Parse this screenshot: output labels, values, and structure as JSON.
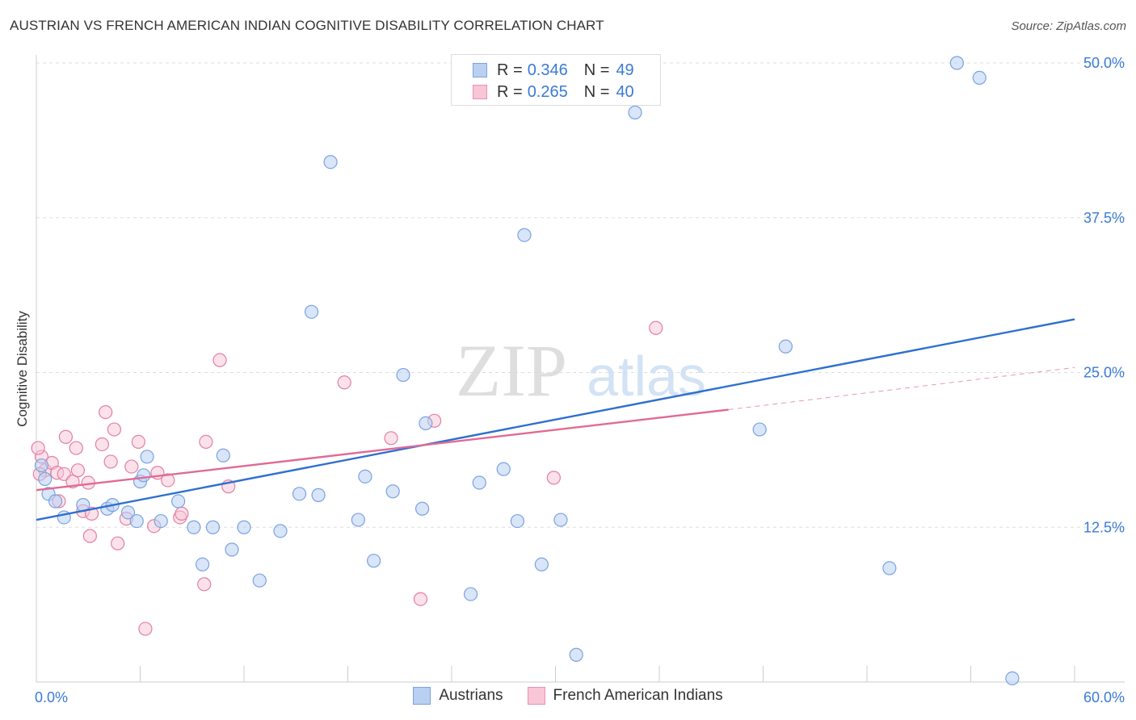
{
  "title": "AUSTRIAN VS FRENCH AMERICAN INDIAN COGNITIVE DISABILITY CORRELATION CHART",
  "source": "Source: ZipAtlas.com",
  "watermark": {
    "zip": "ZIP",
    "atlas": "atlas"
  },
  "legend": {
    "rows": [
      {
        "r_label": "R = ",
        "r_value": "0.346",
        "n_label": "N = ",
        "n_value": "49",
        "fill": "#b9d0f2",
        "stroke": "#7aa3e0"
      },
      {
        "r_label": "R = ",
        "r_value": "0.265",
        "n_label": "N = ",
        "n_value": "40",
        "fill": "#f8c6d6",
        "stroke": "#e892b0"
      }
    ]
  },
  "bottom_legend": [
    {
      "label": "Austrians",
      "fill": "#b9d0f2",
      "stroke": "#7aa3e0"
    },
    {
      "label": "French American Indians",
      "fill": "#f8c6d6",
      "stroke": "#e892b0"
    }
  ],
  "colors": {
    "austrians_fill": "rgba(185,208,242,0.55)",
    "austrians_stroke": "#7aa3e0",
    "austrians_line": "#2e6fd0",
    "french_fill": "rgba(248,198,214,0.5)",
    "french_stroke": "#e37fa2",
    "french_line": "#e06a96",
    "tick_label": "#3a7bd5",
    "grid": "#dddddd"
  },
  "chart_data": {
    "type": "scatter",
    "title": "AUSTRIAN VS FRENCH AMERICAN INDIAN COGNITIVE DISABILITY CORRELATION CHART",
    "xlabel": "",
    "ylabel": "Cognitive Disability",
    "xlim": [
      0,
      60
    ],
    "ylim": [
      0,
      50
    ],
    "x_tick_labels": [
      "0.0%",
      "60.0%"
    ],
    "y_ticks": [
      12.5,
      25.0,
      37.5,
      50.0
    ],
    "y_tick_labels": [
      "12.5%",
      "25.0%",
      "37.5%",
      "50.0%"
    ],
    "grid": "horizontal dashed",
    "legend_position": "top-center",
    "series": [
      {
        "name": "Austrians",
        "points": [
          [
            0.3,
            17.5
          ],
          [
            0.7,
            15.2
          ],
          [
            1.1,
            14.6
          ],
          [
            1.6,
            13.3
          ],
          [
            2.7,
            14.3
          ],
          [
            4.1,
            14.0
          ],
          [
            4.4,
            14.3
          ],
          [
            5.3,
            13.7
          ],
          [
            6.0,
            16.2
          ],
          [
            5.8,
            13.0
          ],
          [
            6.2,
            16.7
          ],
          [
            6.4,
            18.2
          ],
          [
            7.2,
            13.0
          ],
          [
            8.2,
            14.6
          ],
          [
            9.1,
            12.5
          ],
          [
            9.6,
            9.5
          ],
          [
            10.2,
            12.5
          ],
          [
            10.8,
            18.3
          ],
          [
            11.3,
            10.7
          ],
          [
            12.9,
            8.2
          ],
          [
            12.0,
            12.5
          ],
          [
            14.1,
            12.2
          ],
          [
            15.2,
            15.2
          ],
          [
            16.3,
            15.1
          ],
          [
            15.9,
            29.9
          ],
          [
            17.0,
            42.0
          ],
          [
            19.5,
            9.8
          ],
          [
            18.6,
            13.1
          ],
          [
            19.0,
            16.6
          ],
          [
            20.6,
            15.4
          ],
          [
            21.2,
            24.8
          ],
          [
            22.3,
            14.0
          ],
          [
            22.5,
            20.9
          ],
          [
            25.1,
            7.1
          ],
          [
            25.6,
            16.1
          ],
          [
            27.0,
            17.2
          ],
          [
            27.8,
            13.0
          ],
          [
            28.2,
            36.1
          ],
          [
            29.2,
            9.5
          ],
          [
            30.3,
            13.1
          ],
          [
            31.2,
            2.2
          ],
          [
            34.6,
            46.0
          ],
          [
            41.8,
            20.4
          ],
          [
            43.3,
            27.1
          ],
          [
            49.3,
            9.2
          ],
          [
            53.2,
            50.0
          ],
          [
            54.5,
            48.8
          ],
          [
            56.4,
            0.3
          ],
          [
            0.5,
            16.4
          ]
        ]
      },
      {
        "name": "French American Indians",
        "points": [
          [
            0.3,
            18.2
          ],
          [
            0.5,
            17.1
          ],
          [
            0.9,
            17.7
          ],
          [
            1.2,
            16.9
          ],
          [
            1.3,
            14.6
          ],
          [
            1.6,
            16.8
          ],
          [
            1.7,
            19.8
          ],
          [
            2.1,
            16.2
          ],
          [
            2.3,
            18.9
          ],
          [
            2.4,
            17.1
          ],
          [
            3.0,
            16.1
          ],
          [
            2.7,
            13.8
          ],
          [
            3.1,
            11.8
          ],
          [
            3.2,
            13.6
          ],
          [
            3.8,
            19.2
          ],
          [
            4.0,
            21.8
          ],
          [
            4.3,
            17.8
          ],
          [
            4.5,
            20.4
          ],
          [
            4.7,
            11.2
          ],
          [
            5.2,
            13.2
          ],
          [
            5.5,
            17.4
          ],
          [
            5.9,
            19.4
          ],
          [
            6.3,
            4.3
          ],
          [
            6.8,
            12.6
          ],
          [
            7.0,
            16.9
          ],
          [
            7.6,
            16.3
          ],
          [
            8.3,
            13.3
          ],
          [
            8.4,
            13.6
          ],
          [
            9.7,
            7.9
          ],
          [
            9.8,
            19.4
          ],
          [
            10.6,
            26.0
          ],
          [
            11.1,
            15.8
          ],
          [
            17.8,
            24.2
          ],
          [
            20.5,
            19.7
          ],
          [
            22.2,
            6.7
          ],
          [
            23.0,
            21.1
          ],
          [
            29.9,
            16.5
          ],
          [
            35.8,
            28.6
          ],
          [
            0.1,
            18.9
          ],
          [
            0.2,
            16.8
          ]
        ]
      }
    ],
    "trend_lines": [
      {
        "series": "Austrians",
        "x": [
          0,
          60
        ],
        "y": [
          13.1,
          29.3
        ],
        "style": "solid"
      },
      {
        "series": "French American Indians",
        "x": [
          0,
          40
        ],
        "y": [
          15.5,
          22.0
        ],
        "style": "solid"
      },
      {
        "series": "French American Indians",
        "x": [
          40,
          60
        ],
        "y": [
          22.0,
          25.4
        ],
        "style": "dashed"
      }
    ]
  }
}
